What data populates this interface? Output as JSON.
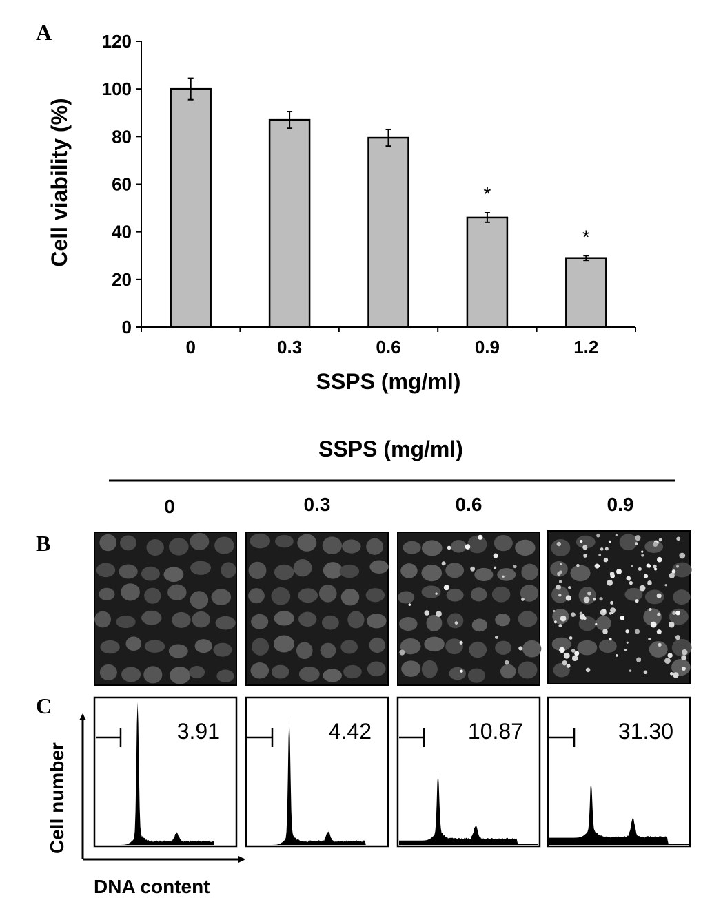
{
  "panels": {
    "A": "A",
    "B": "B",
    "C": "C"
  },
  "chart_data": [
    {
      "type": "bar",
      "panel": "A",
      "categories": [
        "0",
        "0.3",
        "0.6",
        "0.9",
        "1.2"
      ],
      "values": [
        100,
        87,
        79.5,
        46,
        29
      ],
      "errors": [
        4.5,
        3.5,
        3.5,
        2,
        1
      ],
      "significance": [
        "",
        "",
        "",
        "*",
        "*"
      ],
      "xlabel": "SSPS (mg/ml)",
      "ylabel": "Cell viability (%)",
      "ylim": [
        0,
        120
      ],
      "yticks": [
        "0",
        "20",
        "40",
        "60",
        "80",
        "100",
        "120"
      ],
      "bar_color": "#bdbdbd",
      "grid": false
    },
    {
      "type": "histogram",
      "panel": "C",
      "xlabel": "DNA content",
      "ylabel": "Cell number",
      "columns": [
        {
          "concentration": "0",
          "sub_g1_percent": "3.91"
        },
        {
          "concentration": "0.3",
          "sub_g1_percent": "4.42"
        },
        {
          "concentration": "0.6",
          "sub_g1_percent": "10.87"
        },
        {
          "concentration": "0.9",
          "sub_g1_percent": "31.30"
        }
      ]
    }
  ],
  "panel_b": {
    "title": "SSPS (mg/ml)",
    "concentrations": [
      "0",
      "0.3",
      "0.6",
      "0.9"
    ]
  }
}
